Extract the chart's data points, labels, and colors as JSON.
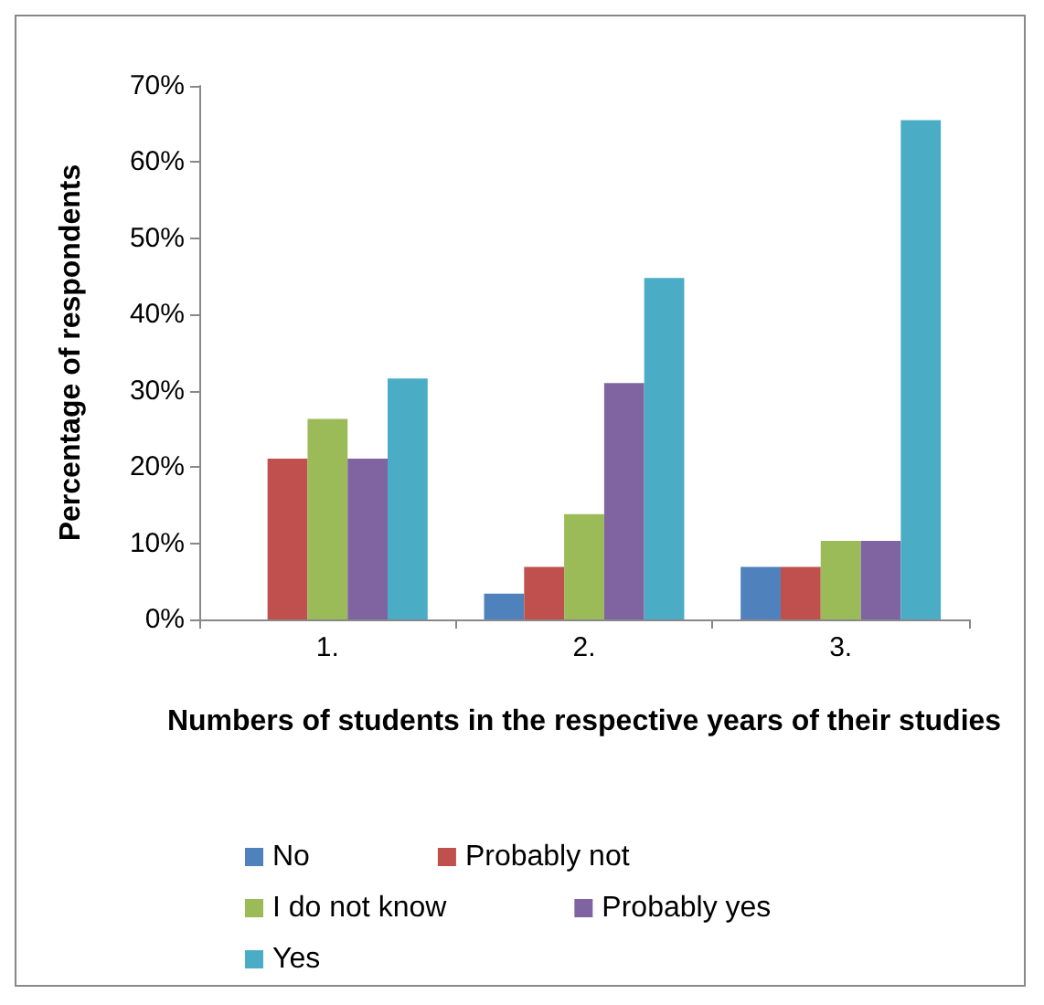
{
  "chart_data": {
    "type": "bar",
    "xlabel": "Numbers of students in the respective years of their studies",
    "ylabel": "Percentage of respondents",
    "categories": [
      "1.",
      "2.",
      "3."
    ],
    "series": [
      {
        "name": "No",
        "color": "#4f81bd",
        "values": [
          0,
          3.4,
          6.9
        ]
      },
      {
        "name": "Probably not",
        "color": "#c0504d",
        "values": [
          21.1,
          6.9,
          6.9
        ]
      },
      {
        "name": "I do not know",
        "color": "#9bbb59",
        "values": [
          26.3,
          13.8,
          10.3
        ]
      },
      {
        "name": "Probably yes",
        "color": "#8064a2",
        "values": [
          21.1,
          31,
          10.3
        ]
      },
      {
        "name": "Yes",
        "color": "#4bacc6",
        "values": [
          31.6,
          44.8,
          65.5
        ]
      }
    ],
    "ylim": [
      0,
      70
    ],
    "yticks": [
      {
        "value": 0,
        "label": "0%"
      },
      {
        "value": 10,
        "label": "10%"
      },
      {
        "value": 20,
        "label": "20%"
      },
      {
        "value": 30,
        "label": "30%"
      },
      {
        "value": 40,
        "label": "40%"
      },
      {
        "value": 50,
        "label": "50%"
      },
      {
        "value": 60,
        "label": "60%"
      },
      {
        "value": 70,
        "label": "70%"
      }
    ],
    "grid": false,
    "legend": "bottom"
  }
}
